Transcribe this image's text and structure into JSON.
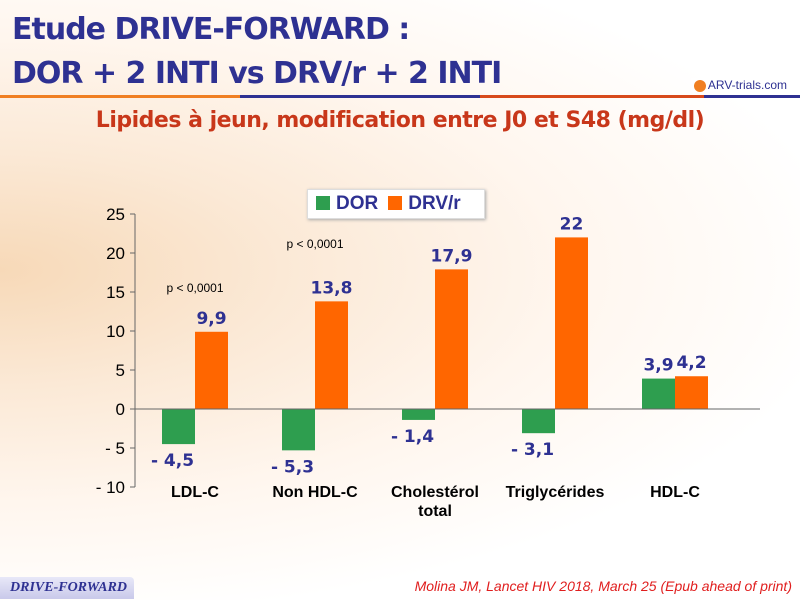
{
  "title_line1": "Etude DRIVE-FORWARD :",
  "title_line2": "DOR + 2 INTI vs DRV/r + 2 INTI",
  "logo": "ARV-trials.com",
  "footer_badge": "DRIVE-FORWARD",
  "reference": "Molina JM, Lancet HIV 2018, March 25 (Epub ahead of print)",
  "chart_data": {
    "type": "bar",
    "title": "Lipides à jeun, modification entre J0 et S48 (mg/dl)",
    "categories": [
      [
        "LDL-C"
      ],
      [
        "Non HDL-C"
      ],
      [
        "Cholestérol",
        "total"
      ],
      [
        "Triglycérides"
      ],
      [
        "HDL-C"
      ]
    ],
    "series": [
      {
        "name": "DOR",
        "color": "#2e9e4f",
        "values": [
          -4.5,
          -5.3,
          -1.4,
          -3.1,
          3.9
        ],
        "labels": [
          "- 4,5",
          "- 5,3",
          "- 1,4",
          "- 3,1",
          "3,9"
        ]
      },
      {
        "name": "DRV/r",
        "color": "#ff6600",
        "values": [
          9.9,
          13.8,
          17.9,
          22,
          4.2
        ],
        "labels": [
          "9,9",
          "13,8",
          "17,9",
          "22",
          "4,2"
        ]
      }
    ],
    "ylim": [
      -10,
      25
    ],
    "yticks": [
      25,
      20,
      15,
      10,
      5,
      0,
      -5,
      -10
    ],
    "ytick_labels": [
      "25",
      "20",
      "15",
      "10",
      "5",
      "0",
      "- 5",
      "- 10"
    ],
    "annotations": [
      {
        "category": 0,
        "text": "p < 0,0001"
      },
      {
        "category": 1,
        "text": "p < 0,0001"
      }
    ],
    "legend": "top"
  }
}
